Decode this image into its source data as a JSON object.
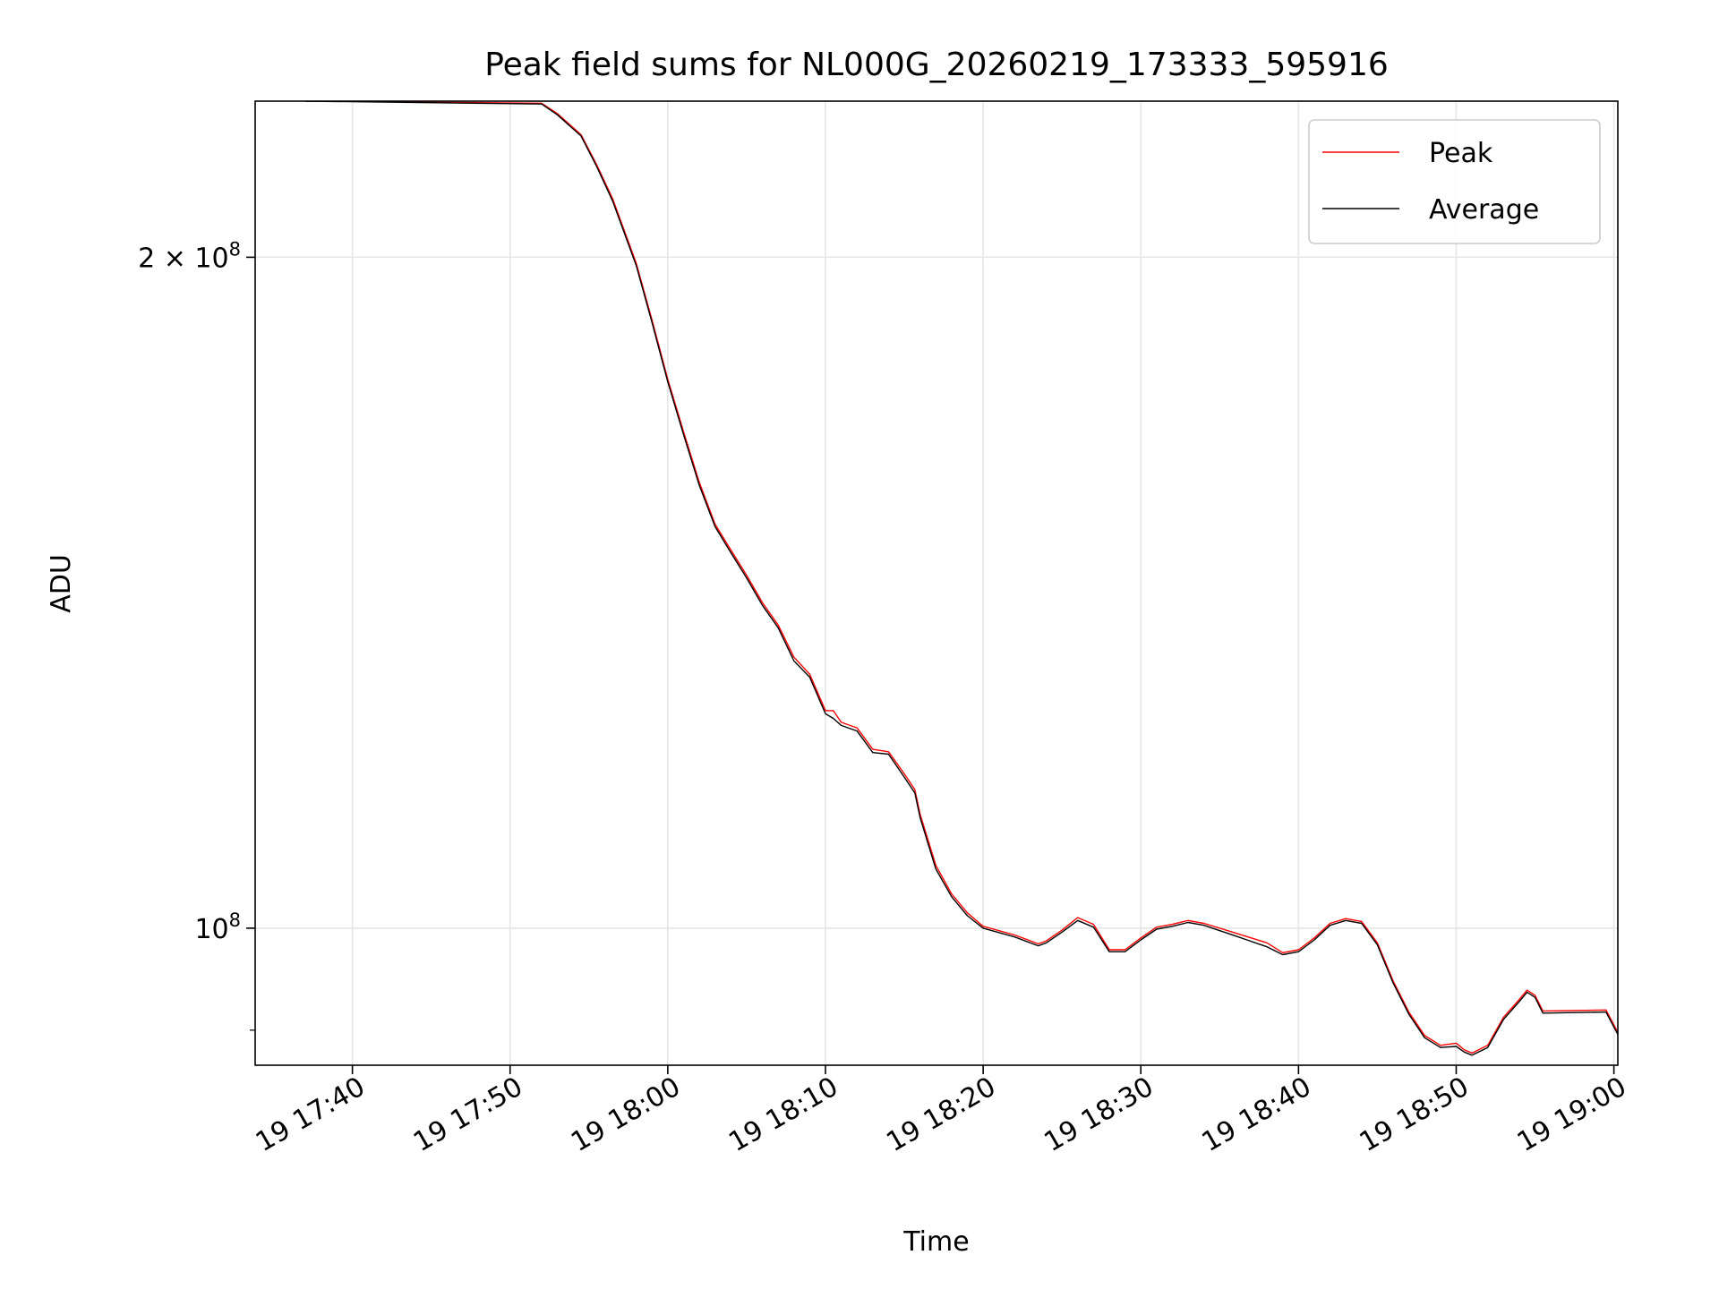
{
  "chart_data": {
    "type": "line",
    "title": "Peak field sums for NL000G_20260219_173333_595916",
    "xlabel": "Time",
    "ylabel": "ADU",
    "yscale": "log",
    "xlim": [
      "2026-02-19 17:33:50",
      "2026-02-19 19:00:15"
    ],
    "ylim": [
      86800000,
      235000000
    ],
    "x_ticks": [
      {
        "value": "2026-02-19 17:40",
        "label": "19 17:40"
      },
      {
        "value": "2026-02-19 17:50",
        "label": "19 17:50"
      },
      {
        "value": "2026-02-19 18:00",
        "label": "19 18:00"
      },
      {
        "value": "2026-02-19 18:10",
        "label": "19 18:10"
      },
      {
        "value": "2026-02-19 18:20",
        "label": "19 18:20"
      },
      {
        "value": "2026-02-19 18:30",
        "label": "19 18:30"
      },
      {
        "value": "2026-02-19 18:40",
        "label": "19 18:40"
      },
      {
        "value": "2026-02-19 18:50",
        "label": "19 18:50"
      },
      {
        "value": "2026-02-19 19:00",
        "label": "19 19:00"
      }
    ],
    "y_ticks": [
      {
        "value": 200000000,
        "base": "2 × 10",
        "exp": "8"
      },
      {
        "value": 100000000,
        "base": "10",
        "exp": "8"
      }
    ],
    "y_minor_ticks": [
      90000000
    ],
    "grid": true,
    "legend_position": "top-right",
    "series": [
      {
        "name": "Peak",
        "color": "#ff0000",
        "points": [
          [
            "2026-02-19 17:37:00",
            235000000
          ],
          [
            "2026-02-19 17:52:00",
            234500000
          ],
          [
            "2026-02-19 17:53:00",
            232000000
          ],
          [
            "2026-02-19 17:54:30",
            227000000
          ],
          [
            "2026-02-19 17:55:30",
            220000000
          ],
          [
            "2026-02-19 17:56:30",
            212500000
          ],
          [
            "2026-02-19 17:58:00",
            198800000
          ],
          [
            "2026-02-19 17:59:00",
            187500000
          ],
          [
            "2026-02-19 18:00:00",
            176300000
          ],
          [
            "2026-02-19 18:01:00",
            167000000
          ],
          [
            "2026-02-19 18:02:00",
            158500000
          ],
          [
            "2026-02-19 18:03:00",
            151800000
          ],
          [
            "2026-02-19 18:04:00",
            147800000
          ],
          [
            "2026-02-19 18:05:00",
            144000000
          ],
          [
            "2026-02-19 18:06:00",
            140000000
          ],
          [
            "2026-02-19 18:07:00",
            136800000
          ],
          [
            "2026-02-19 18:08:00",
            132300000
          ],
          [
            "2026-02-19 18:09:00",
            130000000
          ],
          [
            "2026-02-19 18:10:00",
            125200000
          ],
          [
            "2026-02-19 18:10:30",
            125200000
          ],
          [
            "2026-02-19 18:11:00",
            123700000
          ],
          [
            "2026-02-19 18:12:00",
            123000000
          ],
          [
            "2026-02-19 18:13:00",
            120300000
          ],
          [
            "2026-02-19 18:14:00",
            120000000
          ],
          [
            "2026-02-19 18:15:00",
            117300000
          ],
          [
            "2026-02-19 18:15:40",
            115400000
          ],
          [
            "2026-02-19 18:16:00",
            112500000
          ],
          [
            "2026-02-19 18:17:00",
            106700000
          ],
          [
            "2026-02-19 18:18:00",
            103600000
          ],
          [
            "2026-02-19 18:19:00",
            101600000
          ],
          [
            "2026-02-19 18:20:00",
            100200000
          ],
          [
            "2026-02-19 18:22:00",
            99300000
          ],
          [
            "2026-02-19 18:23:30",
            98400000
          ],
          [
            "2026-02-19 18:24:00",
            98700000
          ],
          [
            "2026-02-19 18:25:00",
            99800000
          ],
          [
            "2026-02-19 18:26:00",
            101100000
          ],
          [
            "2026-02-19 18:27:00",
            100400000
          ],
          [
            "2026-02-19 18:28:00",
            97800000
          ],
          [
            "2026-02-19 18:29:00",
            97800000
          ],
          [
            "2026-02-19 18:30:00",
            99000000
          ],
          [
            "2026-02-19 18:31:00",
            100100000
          ],
          [
            "2026-02-19 18:32:00",
            100400000
          ],
          [
            "2026-02-19 18:33:00",
            100800000
          ],
          [
            "2026-02-19 18:34:00",
            100500000
          ],
          [
            "2026-02-19 18:36:00",
            99500000
          ],
          [
            "2026-02-19 18:38:00",
            98500000
          ],
          [
            "2026-02-19 18:39:00",
            97500000
          ],
          [
            "2026-02-19 18:40:00",
            97800000
          ],
          [
            "2026-02-19 18:41:00",
            99000000
          ],
          [
            "2026-02-19 18:42:00",
            100500000
          ],
          [
            "2026-02-19 18:43:00",
            101000000
          ],
          [
            "2026-02-19 18:44:00",
            100700000
          ],
          [
            "2026-02-19 18:45:00",
            98500000
          ],
          [
            "2026-02-19 18:46:00",
            94700000
          ],
          [
            "2026-02-19 18:47:00",
            91700000
          ],
          [
            "2026-02-19 18:48:00",
            89500000
          ],
          [
            "2026-02-19 18:49:00",
            88600000
          ],
          [
            "2026-02-19 18:50:00",
            88800000
          ],
          [
            "2026-02-19 18:50:30",
            88200000
          ],
          [
            "2026-02-19 18:51:00",
            87900000
          ],
          [
            "2026-02-19 18:52:00",
            88600000
          ],
          [
            "2026-02-19 18:53:00",
            91200000
          ],
          [
            "2026-02-19 18:54:00",
            92900000
          ],
          [
            "2026-02-19 18:54:30",
            93800000
          ],
          [
            "2026-02-19 18:55:00",
            93300000
          ],
          [
            "2026-02-19 18:55:30",
            91800000
          ],
          [
            "2026-02-19 18:59:30",
            91900000
          ],
          [
            "2026-02-19 19:00:15",
            89800000
          ]
        ]
      },
      {
        "name": "Average",
        "color": "#000000",
        "points": [
          [
            "2026-02-19 17:37:00",
            235000000
          ],
          [
            "2026-02-19 17:52:00",
            234300000
          ],
          [
            "2026-02-19 17:53:00",
            231700000
          ],
          [
            "2026-02-19 17:54:30",
            226700000
          ],
          [
            "2026-02-19 17:55:30",
            219600000
          ],
          [
            "2026-02-19 17:56:30",
            212000000
          ],
          [
            "2026-02-19 17:58:00",
            198300000
          ],
          [
            "2026-02-19 17:59:00",
            187000000
          ],
          [
            "2026-02-19 18:00:00",
            175800000
          ],
          [
            "2026-02-19 18:01:00",
            166500000
          ],
          [
            "2026-02-19 18:02:00",
            158000000
          ],
          [
            "2026-02-19 18:03:00",
            151400000
          ],
          [
            "2026-02-19 18:04:00",
            147400000
          ],
          [
            "2026-02-19 18:05:00",
            143600000
          ],
          [
            "2026-02-19 18:06:00",
            139600000
          ],
          [
            "2026-02-19 18:07:00",
            136400000
          ],
          [
            "2026-02-19 18:08:00",
            131800000
          ],
          [
            "2026-02-19 18:09:00",
            129600000
          ],
          [
            "2026-02-19 18:10:00",
            124800000
          ],
          [
            "2026-02-19 18:10:30",
            124200000
          ],
          [
            "2026-02-19 18:11:00",
            123300000
          ],
          [
            "2026-02-19 18:12:00",
            122600000
          ],
          [
            "2026-02-19 18:13:00",
            119900000
          ],
          [
            "2026-02-19 18:14:00",
            119700000
          ],
          [
            "2026-02-19 18:15:00",
            116900000
          ],
          [
            "2026-02-19 18:15:40",
            115000000
          ],
          [
            "2026-02-19 18:16:00",
            112100000
          ],
          [
            "2026-02-19 18:17:00",
            106300000
          ],
          [
            "2026-02-19 18:18:00",
            103300000
          ],
          [
            "2026-02-19 18:19:00",
            101300000
          ],
          [
            "2026-02-19 18:20:00",
            100000000
          ],
          [
            "2026-02-19 18:22:00",
            99100000
          ],
          [
            "2026-02-19 18:23:30",
            98200000
          ],
          [
            "2026-02-19 18:24:00",
            98500000
          ],
          [
            "2026-02-19 18:25:00",
            99600000
          ],
          [
            "2026-02-19 18:26:00",
            100800000
          ],
          [
            "2026-02-19 18:27:00",
            100100000
          ],
          [
            "2026-02-19 18:28:00",
            97600000
          ],
          [
            "2026-02-19 18:29:00",
            97600000
          ],
          [
            "2026-02-19 18:30:00",
            98800000
          ],
          [
            "2026-02-19 18:31:00",
            99900000
          ],
          [
            "2026-02-19 18:32:00",
            100200000
          ],
          [
            "2026-02-19 18:33:00",
            100600000
          ],
          [
            "2026-02-19 18:34:00",
            100300000
          ],
          [
            "2026-02-19 18:36:00",
            99200000
          ],
          [
            "2026-02-19 18:38:00",
            98100000
          ],
          [
            "2026-02-19 18:39:00",
            97300000
          ],
          [
            "2026-02-19 18:40:00",
            97600000
          ],
          [
            "2026-02-19 18:41:00",
            98800000
          ],
          [
            "2026-02-19 18:42:00",
            100300000
          ],
          [
            "2026-02-19 18:43:00",
            100800000
          ],
          [
            "2026-02-19 18:44:00",
            100500000
          ],
          [
            "2026-02-19 18:45:00",
            98300000
          ],
          [
            "2026-02-19 18:46:00",
            94500000
          ],
          [
            "2026-02-19 18:47:00",
            91500000
          ],
          [
            "2026-02-19 18:48:00",
            89300000
          ],
          [
            "2026-02-19 18:49:00",
            88400000
          ],
          [
            "2026-02-19 18:50:00",
            88500000
          ],
          [
            "2026-02-19 18:50:30",
            88000000
          ],
          [
            "2026-02-19 18:51:00",
            87700000
          ],
          [
            "2026-02-19 18:52:00",
            88400000
          ],
          [
            "2026-02-19 18:53:00",
            91000000
          ],
          [
            "2026-02-19 18:54:00",
            92700000
          ],
          [
            "2026-02-19 18:54:30",
            93600000
          ],
          [
            "2026-02-19 18:55:00",
            93100000
          ],
          [
            "2026-02-19 18:55:30",
            91600000
          ],
          [
            "2026-02-19 18:59:30",
            91700000
          ],
          [
            "2026-02-19 19:00:15",
            89600000
          ]
        ]
      }
    ]
  }
}
